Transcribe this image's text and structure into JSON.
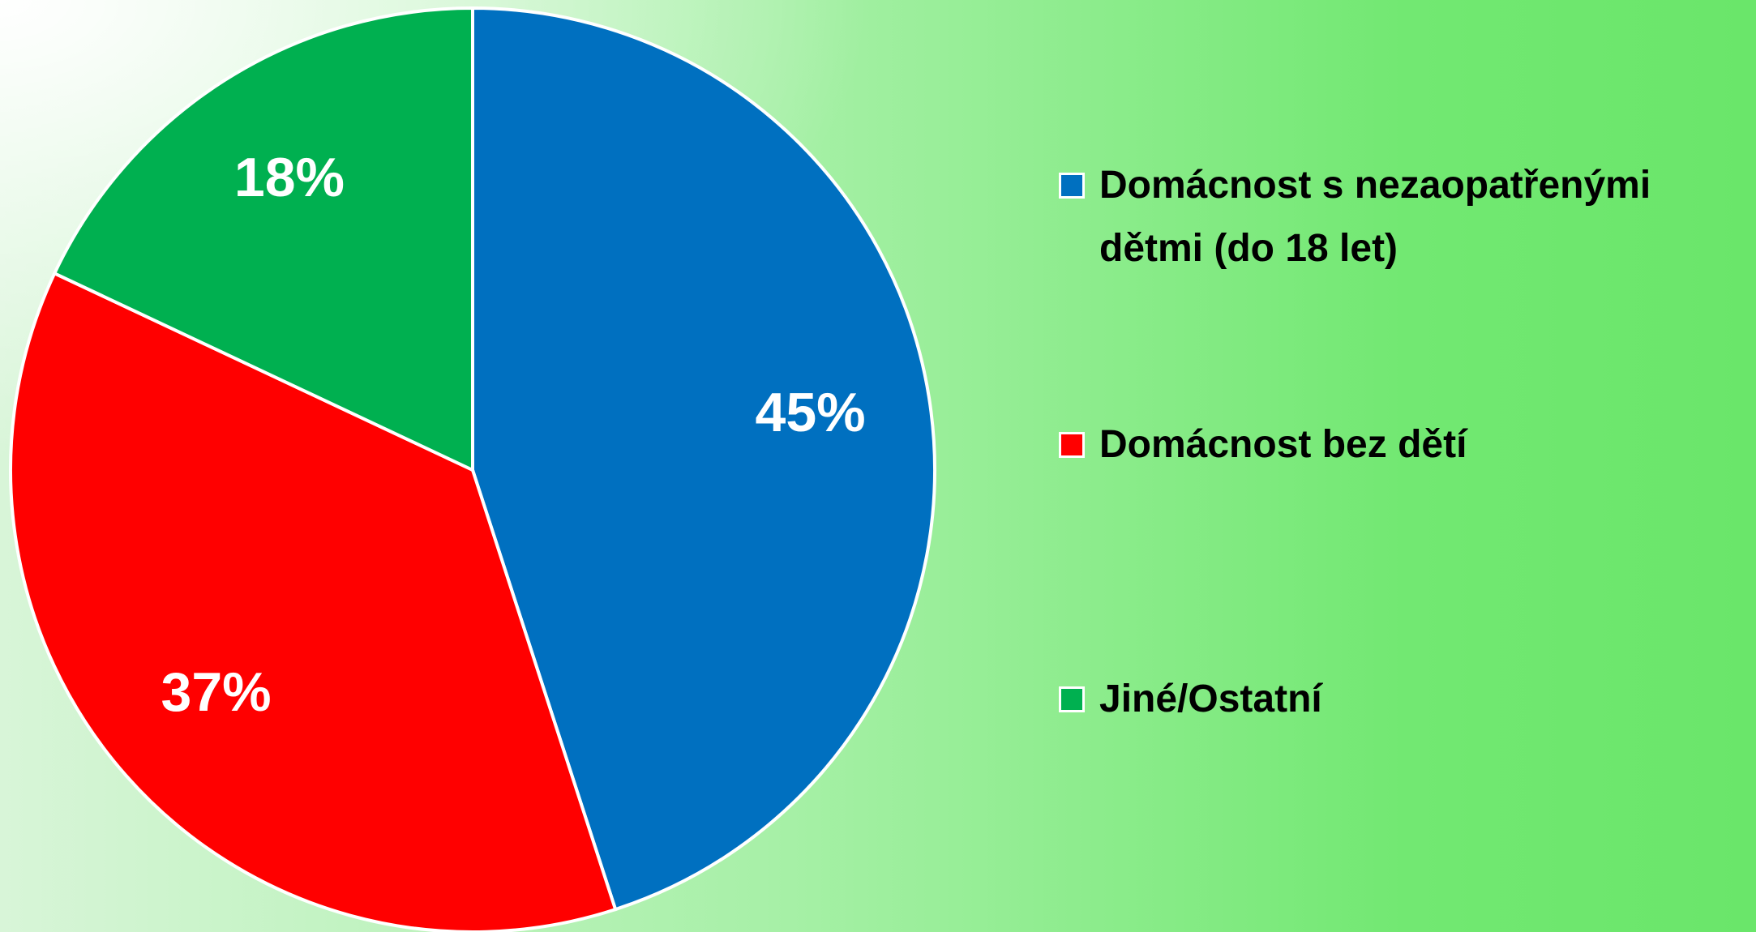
{
  "chart_data": {
    "type": "pie",
    "categories": [
      "Domácnost s nezaopatřenými dětmi (do 18 let)",
      "Domácnost bez dětí",
      "Jiné/Ostatní"
    ],
    "values": [
      45,
      37,
      18
    ],
    "value_labels": [
      "45%",
      "37%",
      "18%"
    ],
    "colors": [
      "#0070c0",
      "#ff0000",
      "#00b050"
    ],
    "legend": "right"
  }
}
